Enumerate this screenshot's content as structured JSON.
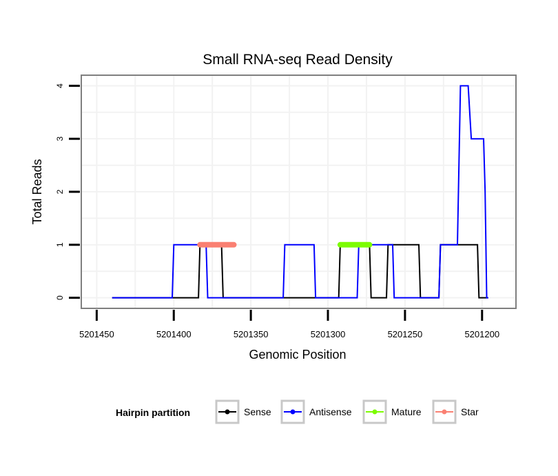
{
  "chart_data": {
    "type": "line",
    "title": "Small RNA-seq Read Density",
    "xlabel": "Genomic Position",
    "ylabel": "Total Reads",
    "x_reversed": true,
    "xlim": [
      5201460,
      5201178
    ],
    "ylim": [
      -0.2,
      4.2
    ],
    "x_ticks": [
      5201450,
      5201400,
      5201350,
      5201300,
      5201250,
      5201200
    ],
    "x_tick_labels": [
      "5201450",
      "5201400",
      "5201350",
      "5201300",
      "5201250",
      "5201200"
    ],
    "y_ticks": [
      0,
      1,
      2,
      3,
      4
    ],
    "y_tick_labels": [
      "0",
      "1",
      "2",
      "3",
      "4"
    ],
    "grid": true,
    "legend": {
      "title": "Hairpin partition",
      "position": "bottom",
      "entries": [
        {
          "label": "Sense",
          "color": "#000000"
        },
        {
          "label": "Antisense",
          "color": "#0000ff"
        },
        {
          "label": "Mature",
          "color": "#7cfc00"
        },
        {
          "label": "Star",
          "color": "#fa8072"
        }
      ]
    },
    "series": [
      {
        "name": "Sense",
        "color": "#000000",
        "points": [
          [
            5201440,
            0
          ],
          [
            5201384,
            0
          ],
          [
            5201383,
            1
          ],
          [
            5201369,
            1
          ],
          [
            5201368,
            0
          ],
          [
            5201293,
            0
          ],
          [
            5201292,
            1
          ],
          [
            5201273,
            1
          ],
          [
            5201272,
            0
          ],
          [
            5201262,
            0
          ],
          [
            5201261,
            1
          ],
          [
            5201241,
            1
          ],
          [
            5201240,
            0
          ],
          [
            5201228,
            0
          ],
          [
            5201227,
            1
          ],
          [
            5201203,
            1
          ],
          [
            5201202,
            0
          ],
          [
            5201196,
            0
          ]
        ]
      },
      {
        "name": "Antisense",
        "color": "#0000ff",
        "points": [
          [
            5201440,
            0
          ],
          [
            5201401,
            0
          ],
          [
            5201400,
            1
          ],
          [
            5201385,
            1
          ],
          [
            5201379,
            1
          ],
          [
            5201378,
            0
          ],
          [
            5201329,
            0
          ],
          [
            5201328,
            1
          ],
          [
            5201309,
            1
          ],
          [
            5201308,
            0
          ],
          [
            5201281,
            0
          ],
          [
            5201280,
            1
          ],
          [
            5201258,
            1
          ],
          [
            5201257,
            0
          ],
          [
            5201228,
            0
          ],
          [
            5201227,
            1
          ],
          [
            5201216,
            1
          ],
          [
            5201214,
            4
          ],
          [
            5201209,
            4
          ],
          [
            5201207,
            3
          ],
          [
            5201199,
            3
          ],
          [
            5201198,
            2
          ],
          [
            5201197,
            0
          ],
          [
            5201196,
            0
          ]
        ]
      },
      {
        "name": "Mature",
        "color": "#7cfc00",
        "points": [
          [
            5201292,
            1
          ],
          [
            5201273,
            1
          ]
        ]
      },
      {
        "name": "Star",
        "color": "#fa8072",
        "points": [
          [
            5201383,
            1
          ],
          [
            5201361,
            1
          ]
        ]
      }
    ]
  }
}
